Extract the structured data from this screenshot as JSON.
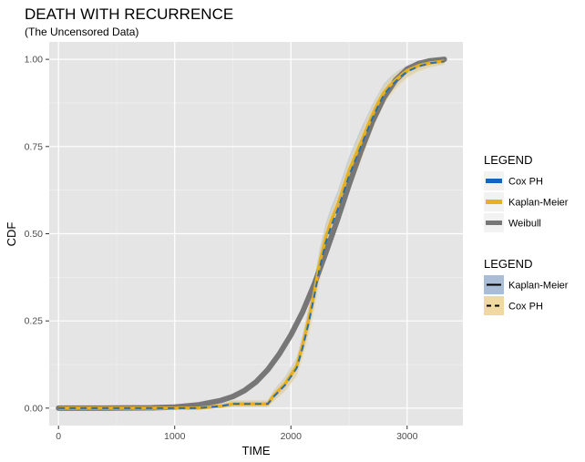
{
  "chart_data": {
    "type": "line",
    "title": "DEATH WITH RECURRENCE",
    "subtitle": "(The Uncensored Data)",
    "xlabel": "TIME",
    "ylabel": "CDF",
    "xlim": [
      -80,
      3480
    ],
    "ylim": [
      -0.05,
      1.05
    ],
    "x_ticks": [
      0,
      1000,
      2000,
      3000
    ],
    "x_tick_labels": [
      "0",
      "1000",
      "2000",
      "3000"
    ],
    "y_ticks": [
      0.0,
      0.25,
      0.5,
      0.75,
      1.0
    ],
    "y_tick_labels": [
      "0.00",
      "0.25",
      "0.50",
      "0.75",
      "1.00"
    ],
    "grid": true,
    "legend_position": "right",
    "legends": [
      {
        "title": "LEGEND",
        "entries": [
          {
            "label": "Cox PH",
            "color": "#1565c0"
          },
          {
            "label": "Kaplan-Meier",
            "color": "#e6b020"
          },
          {
            "label": "Weibull",
            "color": "#777777"
          }
        ]
      },
      {
        "title": "LEGEND",
        "entries": [
          {
            "label": "Kaplan-Meier",
            "fill": "#a9bdd6",
            "line": "solid"
          },
          {
            "label": "Cox PH",
            "fill": "#efd9a1",
            "line": "dashed"
          }
        ]
      }
    ],
    "series": [
      {
        "name": "Weibull",
        "color": "#777777",
        "x": [
          0,
          400,
          800,
          1000,
          1200,
          1400,
          1500,
          1600,
          1700,
          1800,
          1900,
          2000,
          2100,
          2200,
          2300,
          2400,
          2500,
          2600,
          2700,
          2800,
          2900,
          3000,
          3100,
          3200,
          3320
        ],
        "y": [
          0.0,
          0.0,
          0.001,
          0.003,
          0.009,
          0.022,
          0.033,
          0.05,
          0.075,
          0.11,
          0.155,
          0.21,
          0.275,
          0.355,
          0.445,
          0.54,
          0.64,
          0.735,
          0.82,
          0.89,
          0.94,
          0.972,
          0.988,
          0.996,
          1.0
        ]
      },
      {
        "name": "Kaplan-Meier",
        "color": "#e6b020",
        "band_color": "#a9bdd6",
        "x": [
          0,
          1200,
          1300,
          1400,
          1500,
          1800,
          1850,
          1950,
          2050,
          2100,
          2150,
          2200,
          2250,
          2300,
          2350,
          2400,
          2450,
          2500,
          2550,
          2600,
          2650,
          2700,
          2750,
          2800,
          2850,
          2900,
          2950,
          3000,
          3100,
          3200,
          3320
        ],
        "y": [
          0.0,
          0.0,
          0.003,
          0.006,
          0.012,
          0.012,
          0.035,
          0.07,
          0.12,
          0.18,
          0.25,
          0.33,
          0.42,
          0.49,
          0.54,
          0.58,
          0.63,
          0.68,
          0.72,
          0.76,
          0.8,
          0.84,
          0.875,
          0.905,
          0.925,
          0.94,
          0.955,
          0.968,
          0.982,
          0.99,
          0.995
        ],
        "lower": [
          0.0,
          0.0,
          0.0,
          0.0,
          0.003,
          0.003,
          0.02,
          0.05,
          0.095,
          0.15,
          0.215,
          0.29,
          0.38,
          0.45,
          0.5,
          0.54,
          0.59,
          0.64,
          0.68,
          0.72,
          0.765,
          0.81,
          0.845,
          0.878,
          0.9,
          0.918,
          0.935,
          0.95,
          0.968,
          0.978,
          0.985
        ],
        "upper": [
          0.0,
          0.0,
          0.008,
          0.013,
          0.022,
          0.022,
          0.05,
          0.09,
          0.145,
          0.21,
          0.285,
          0.37,
          0.46,
          0.53,
          0.58,
          0.62,
          0.67,
          0.72,
          0.76,
          0.8,
          0.835,
          0.87,
          0.9,
          0.93,
          0.948,
          0.962,
          0.973,
          0.983,
          0.993,
          0.998,
          1.0
        ]
      },
      {
        "name": "Cox PH",
        "color": "#2a6fa8",
        "band_color": "#efd9a1",
        "x": [
          0,
          1200,
          1300,
          1400,
          1500,
          1800,
          1850,
          1950,
          2050,
          2100,
          2150,
          2200,
          2250,
          2300,
          2350,
          2400,
          2450,
          2500,
          2550,
          2600,
          2650,
          2700,
          2750,
          2800,
          2850,
          2900,
          2950,
          3000,
          3100,
          3200,
          3320
        ],
        "y": [
          0.0,
          0.0,
          0.003,
          0.006,
          0.012,
          0.012,
          0.032,
          0.066,
          0.115,
          0.172,
          0.24,
          0.32,
          0.405,
          0.475,
          0.525,
          0.567,
          0.615,
          0.665,
          0.707,
          0.748,
          0.79,
          0.83,
          0.866,
          0.898,
          0.92,
          0.936,
          0.952,
          0.965,
          0.98,
          0.989,
          0.994
        ],
        "lower": [
          0.0,
          0.0,
          0.0,
          0.0,
          0.004,
          0.004,
          0.018,
          0.048,
          0.09,
          0.14,
          0.2,
          0.275,
          0.36,
          0.43,
          0.48,
          0.522,
          0.57,
          0.62,
          0.662,
          0.705,
          0.75,
          0.795,
          0.835,
          0.87,
          0.893,
          0.912,
          0.93,
          0.946,
          0.965,
          0.977,
          0.984
        ],
        "upper": [
          0.0,
          0.0,
          0.008,
          0.013,
          0.022,
          0.022,
          0.048,
          0.088,
          0.142,
          0.205,
          0.28,
          0.365,
          0.45,
          0.52,
          0.57,
          0.61,
          0.66,
          0.71,
          0.752,
          0.79,
          0.83,
          0.865,
          0.897,
          0.926,
          0.945,
          0.96,
          0.972,
          0.982,
          0.992,
          0.997,
          1.0
        ]
      }
    ]
  }
}
